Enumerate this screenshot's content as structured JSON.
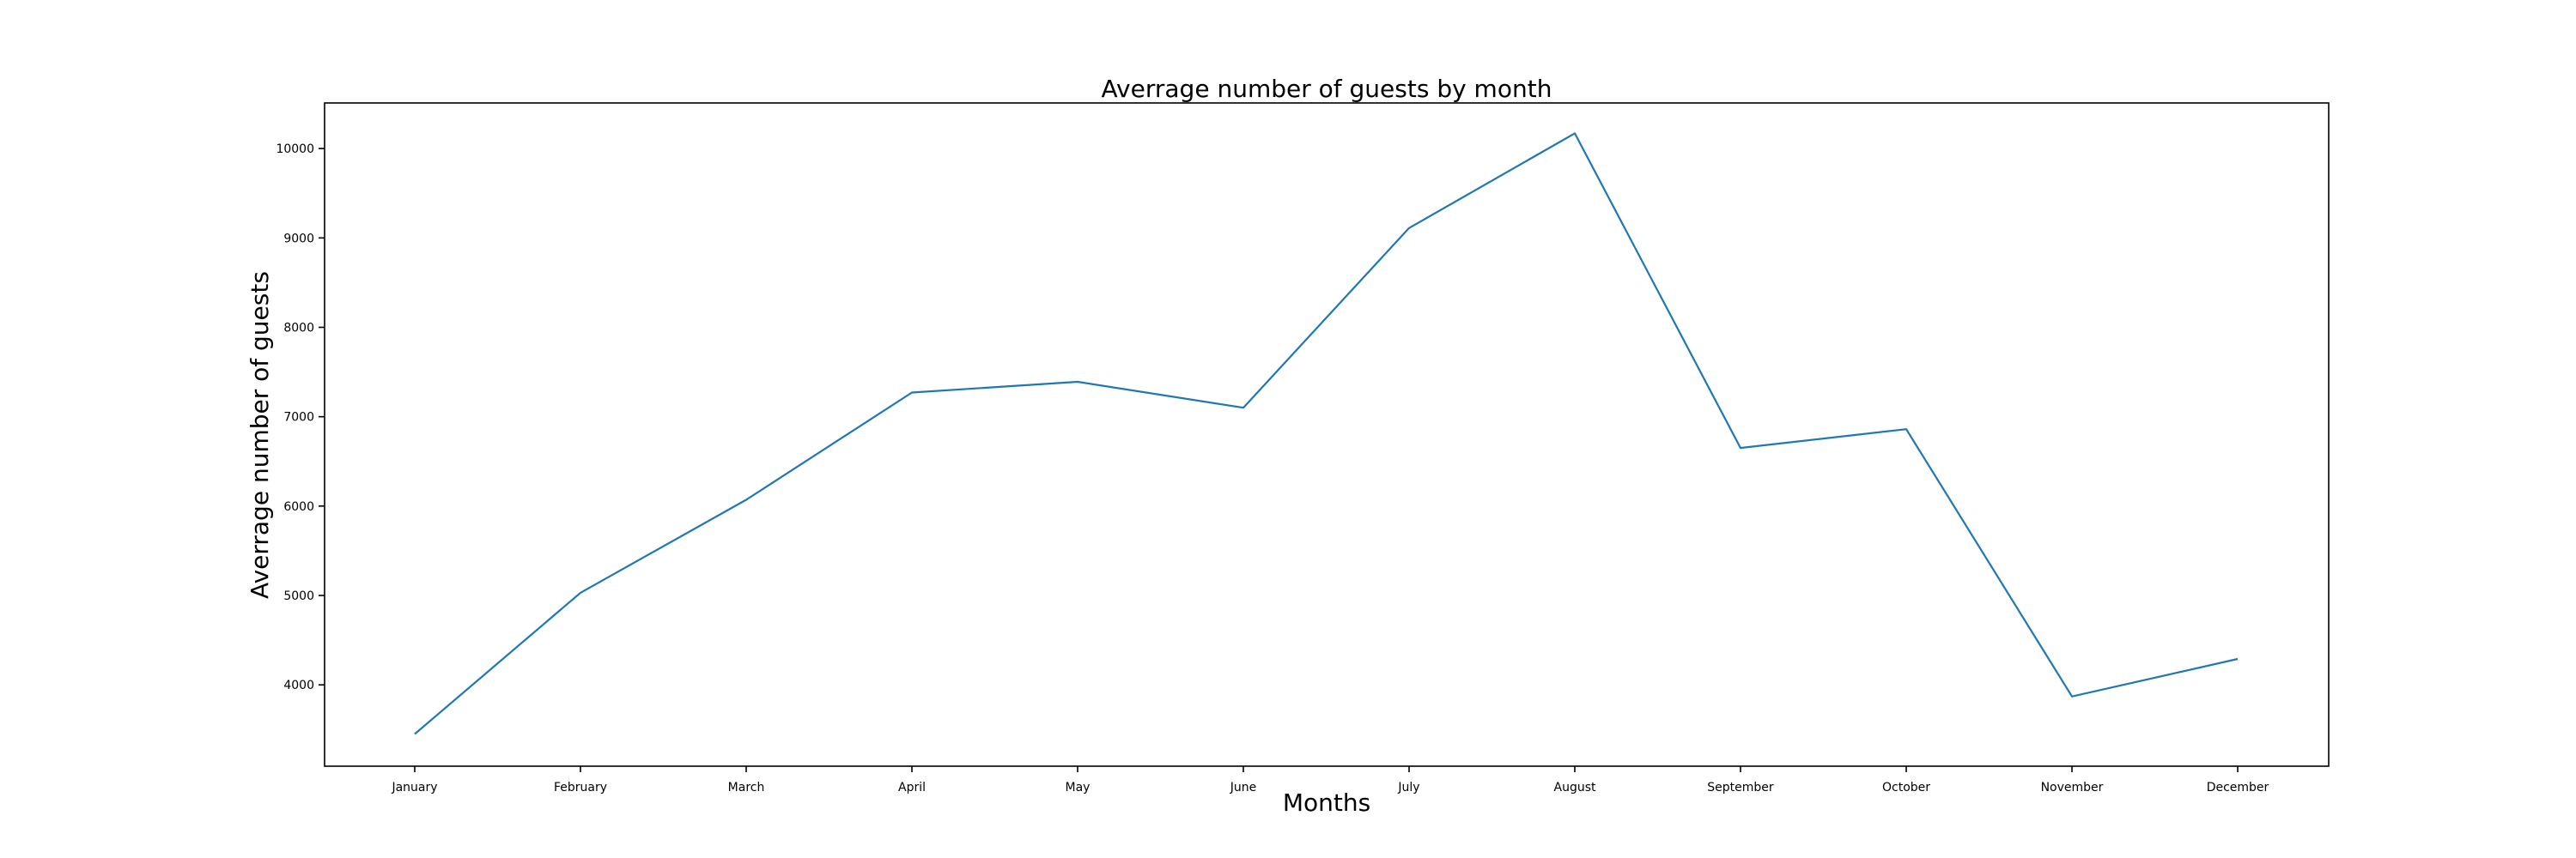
{
  "chart_data": {
    "type": "line",
    "title": "Averrage number of guests by month",
    "xlabel": "Months",
    "ylabel": "Averrage number of guests",
    "categories": [
      "January",
      "February",
      "March",
      "April",
      "May",
      "June",
      "July",
      "August",
      "September",
      "October",
      "November",
      "December"
    ],
    "series": [
      {
        "values": [
          3450,
          5030,
          6070,
          7270,
          7390,
          7100,
          9110,
          10170,
          6650,
          6860,
          3870,
          4290
        ],
        "color": "#1f77b4"
      }
    ],
    "yticks": [
      4000,
      5000,
      6000,
      7000,
      8000,
      9000,
      10000
    ],
    "ylim": [
      3090,
      10510
    ],
    "grid": false,
    "legend": "none"
  }
}
